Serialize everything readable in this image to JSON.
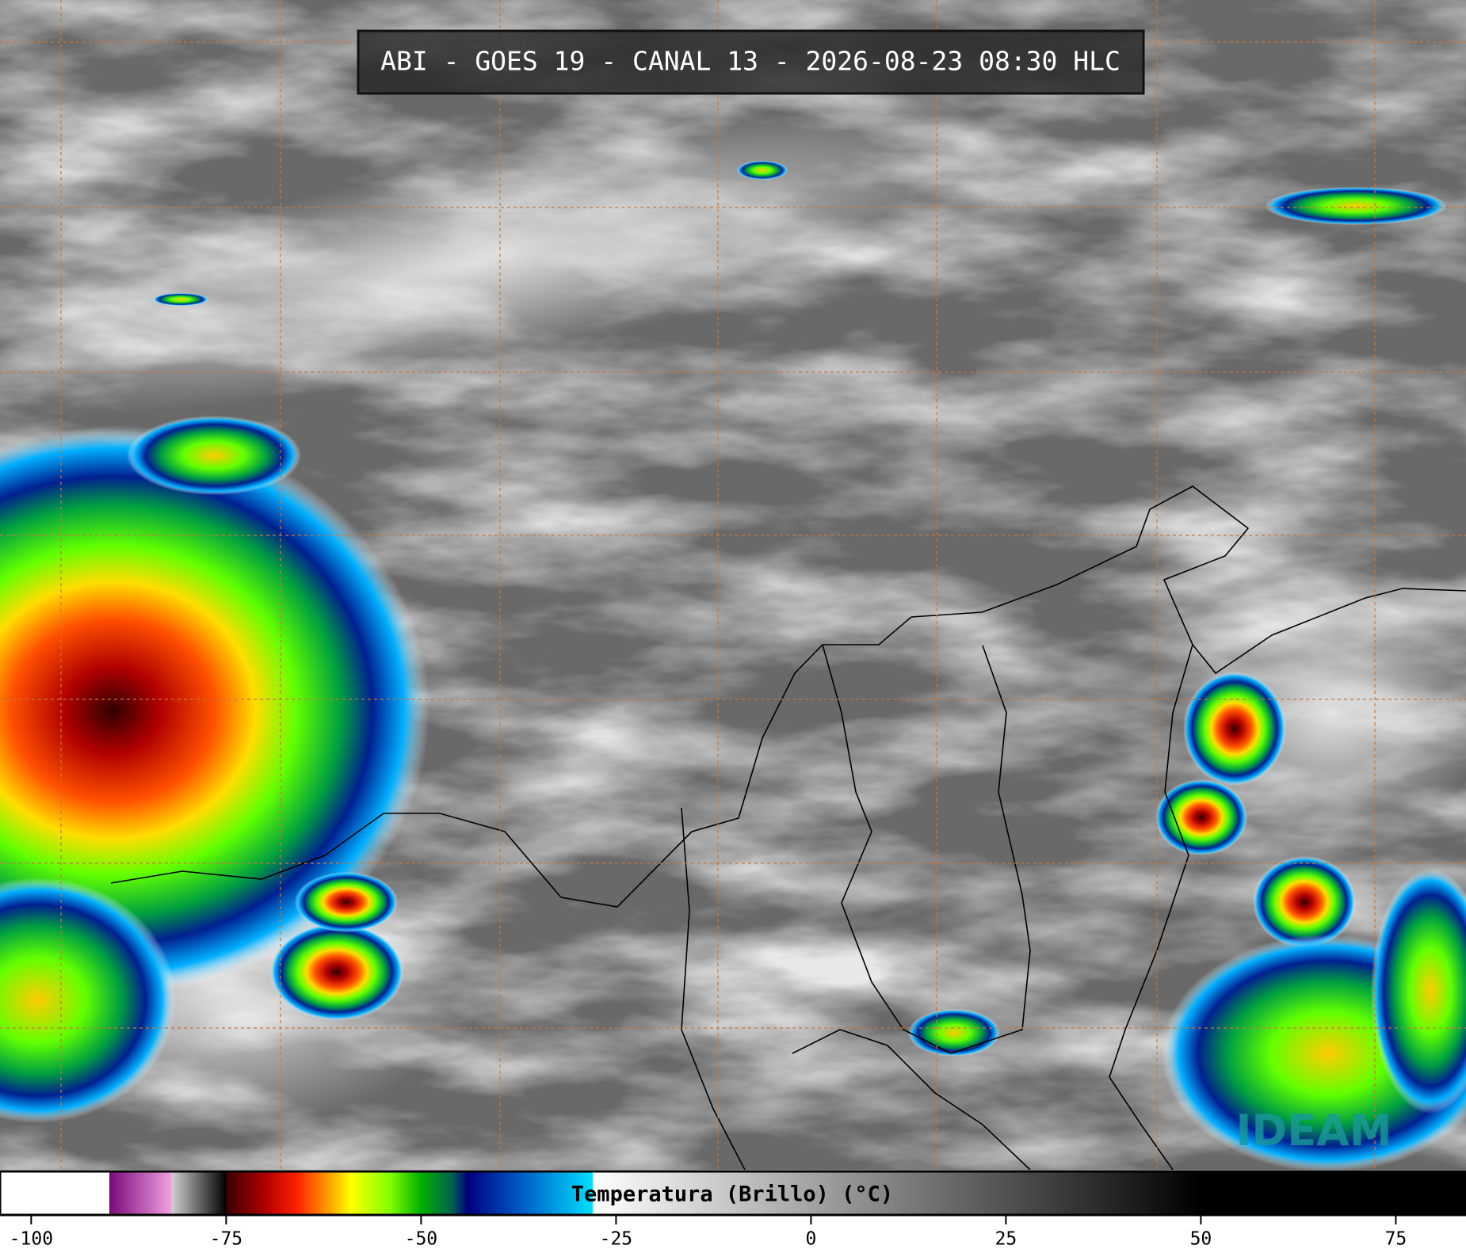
{
  "header": {
    "title": "ABI - GOES 19 - CANAL 13 - 2026-08-23 08:30 HLC"
  },
  "logo": {
    "text": "IDEAM"
  },
  "chart_data": {
    "type": "colorbar",
    "label": "Temperatura (Brillo) (°C)",
    "xlim": [
      -104,
      84
    ],
    "xticks": [
      -100,
      -75,
      -50,
      -25,
      0,
      25,
      50,
      75
    ],
    "stops": [
      {
        "value": -104,
        "color": "#ffffff"
      },
      {
        "value": -90,
        "color": "#ffffff"
      },
      {
        "value": -90,
        "color": "#7a0a7a"
      },
      {
        "value": -82,
        "color": "#f0a0e0"
      },
      {
        "value": -82,
        "color": "#d0d0d0"
      },
      {
        "value": -75,
        "color": "#000000"
      },
      {
        "value": -75,
        "color": "#3a0000"
      },
      {
        "value": -70,
        "color": "#b00000"
      },
      {
        "value": -66,
        "color": "#ff2000"
      },
      {
        "value": -62,
        "color": "#ff9900"
      },
      {
        "value": -59,
        "color": "#ffff00"
      },
      {
        "value": -54,
        "color": "#80ff00"
      },
      {
        "value": -50,
        "color": "#00b000"
      },
      {
        "value": -46,
        "color": "#006050"
      },
      {
        "value": -44,
        "color": "#000080"
      },
      {
        "value": -38,
        "color": "#0050c0"
      },
      {
        "value": -28,
        "color": "#00e0ff"
      },
      {
        "value": -28,
        "color": "#ffffff"
      },
      {
        "value": 50,
        "color": "#000000"
      },
      {
        "value": 84,
        "color": "#000000"
      }
    ]
  }
}
